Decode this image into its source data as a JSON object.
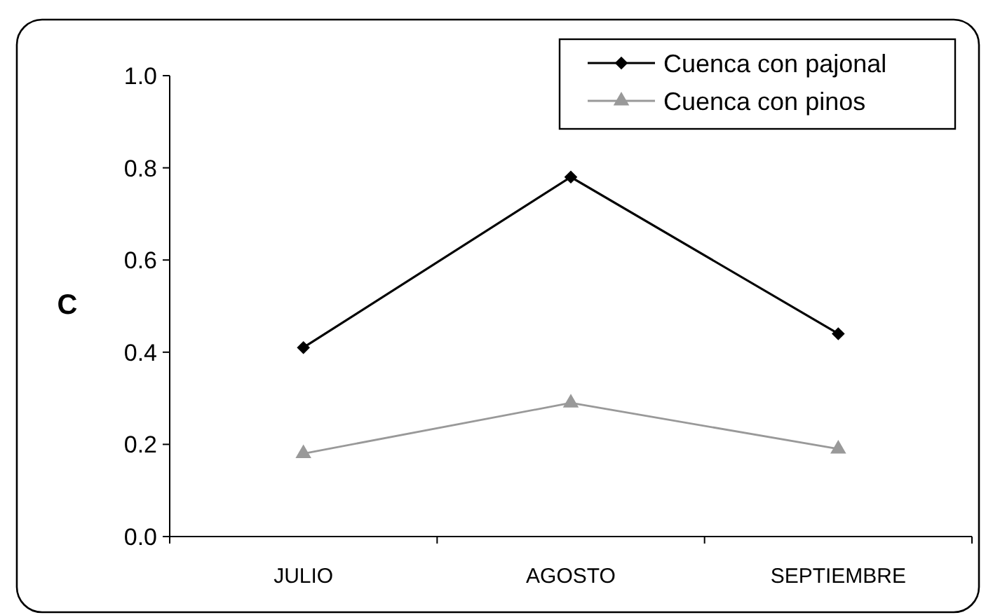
{
  "chart_data": {
    "type": "line",
    "ylabel": "C",
    "categories": [
      "JULIO",
      "AGOSTO",
      "SEPTIEMBRE"
    ],
    "series": [
      {
        "name": "Cuenca con pajonal",
        "color": "#000000",
        "marker": "diamond",
        "values": [
          0.41,
          0.78,
          0.44
        ]
      },
      {
        "name": "Cuenca con pinos",
        "color": "#999999",
        "marker": "triangle",
        "values": [
          0.18,
          0.29,
          0.19
        ]
      }
    ],
    "ylim": [
      0,
      1
    ],
    "yticks": [
      {
        "value": 0,
        "label": "0.0"
      },
      {
        "value": 0.2,
        "label": "0.2"
      },
      {
        "value": 0.4,
        "label": "0.4"
      },
      {
        "value": 0.6,
        "label": "0.6"
      },
      {
        "value": 0.8,
        "label": "0.8"
      },
      {
        "value": 1,
        "label": "1.0"
      }
    ],
    "grid": false,
    "legend": "top right"
  }
}
